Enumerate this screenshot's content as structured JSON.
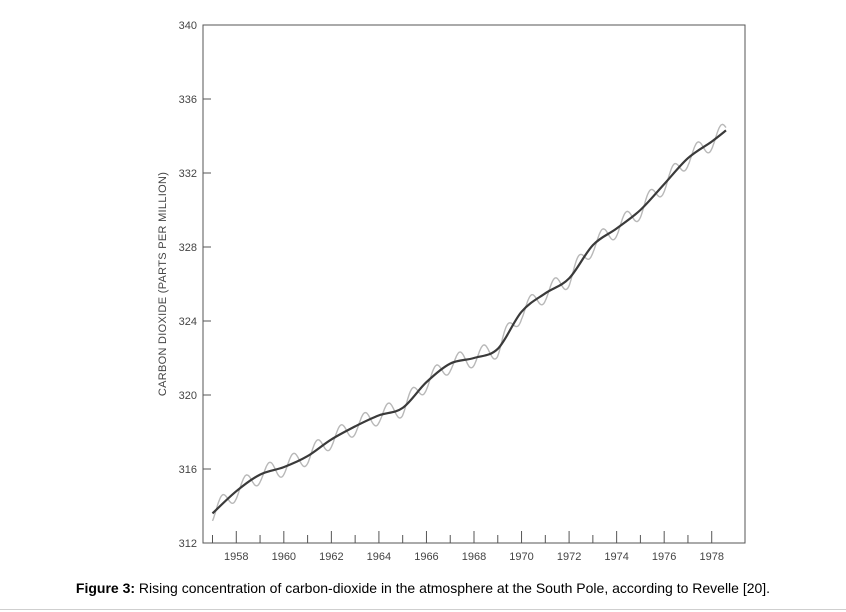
{
  "chart_data": {
    "type": "line",
    "ylabel": "CARBON DIOXIDE (PARTS PER MILLION)",
    "xlabel": "",
    "xlim": [
      1956.6,
      1979.4
    ],
    "ylim": [
      312,
      340
    ],
    "yticks": [
      312,
      316,
      320,
      324,
      328,
      332,
      336,
      340
    ],
    "xticks": [
      1958,
      1960,
      1962,
      1964,
      1966,
      1968,
      1970,
      1972,
      1974,
      1976,
      1978
    ],
    "grid": false,
    "series": [
      {
        "role": "trend",
        "color": "#3a3a3a",
        "x": [
          1957.0,
          1958.0,
          1959.0,
          1960.0,
          1961.0,
          1962.0,
          1963.0,
          1964.0,
          1965.0,
          1966.0,
          1967.0,
          1968.0,
          1969.0,
          1970.0,
          1971.0,
          1972.0,
          1973.0,
          1974.0,
          1975.0,
          1976.0,
          1977.0,
          1978.0,
          1978.6
        ],
        "values": [
          313.6,
          314.8,
          315.7,
          316.1,
          316.7,
          317.6,
          318.3,
          318.9,
          319.3,
          320.7,
          321.7,
          322.0,
          322.5,
          324.5,
          325.5,
          326.3,
          328.1,
          329.0,
          330.0,
          331.4,
          332.8,
          333.7,
          334.3
        ]
      },
      {
        "role": "monthly-seasonal",
        "color": "#b8b8b8",
        "seasonal_amplitude": 0.5
      }
    ]
  },
  "caption": {
    "label": "Figure 3:",
    "text": " Rising concentration of carbon-dioxide in the atmosphere at the South Pole, according to Revelle [20]."
  }
}
